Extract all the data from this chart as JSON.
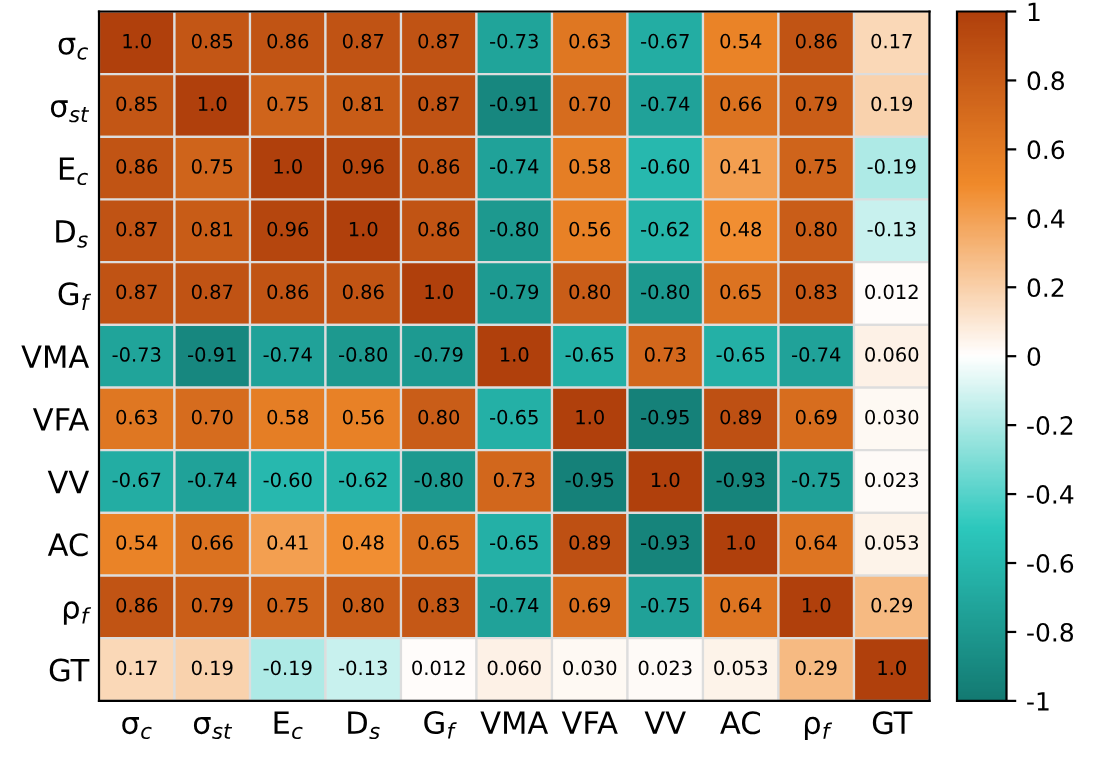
{
  "chart_data": {
    "type": "heatmap",
    "categories": [
      "σ$_{c}$",
      "σ$_{st}$",
      "E$_{c}$",
      "D$_{s}$",
      "G$_{f}$",
      "VMA",
      "VFA",
      "VV",
      "AC",
      "ρ$_{f}$",
      "GT"
    ],
    "y_categories": [
      "σ$_{c}$",
      "σ$_{st}$",
      "E$_{c}$",
      "D$_{s}$",
      "G$_{f}$",
      "VMA",
      "VFA",
      "VV",
      "AC",
      "ρ$_{f}$",
      "GT"
    ],
    "cells": [
      [
        1.0,
        0.85,
        0.86,
        0.87,
        0.87,
        -0.73,
        0.63,
        -0.67,
        0.54,
        0.86,
        0.17
      ],
      [
        0.85,
        1.0,
        0.75,
        0.81,
        0.87,
        -0.91,
        0.7,
        -0.74,
        0.66,
        0.79,
        0.19
      ],
      [
        0.86,
        0.75,
        1.0,
        0.96,
        0.86,
        -0.74,
        0.58,
        -0.6,
        0.41,
        0.75,
        -0.19
      ],
      [
        0.87,
        0.81,
        0.96,
        1.0,
        0.86,
        -0.8,
        0.56,
        -0.62,
        0.48,
        0.8,
        -0.13
      ],
      [
        0.87,
        0.87,
        0.86,
        0.86,
        1.0,
        -0.79,
        0.8,
        -0.8,
        0.65,
        0.83,
        0.012
      ],
      [
        -0.73,
        -0.91,
        -0.74,
        -0.8,
        -0.79,
        1.0,
        -0.65,
        0.73,
        -0.65,
        -0.74,
        0.06
      ],
      [
        0.63,
        0.7,
        0.58,
        0.56,
        0.8,
        -0.65,
        1.0,
        -0.95,
        0.89,
        0.69,
        0.03
      ],
      [
        -0.67,
        -0.74,
        -0.6,
        -0.62,
        -0.8,
        0.73,
        -0.95,
        1.0,
        -0.93,
        -0.75,
        0.023
      ],
      [
        0.54,
        0.66,
        0.41,
        0.48,
        0.65,
        -0.65,
        0.89,
        -0.93,
        1.0,
        0.64,
        0.053
      ],
      [
        0.86,
        0.79,
        0.75,
        0.8,
        0.83,
        -0.74,
        0.69,
        -0.75,
        0.64,
        1.0,
        0.29
      ],
      [
        0.17,
        0.19,
        -0.19,
        -0.13,
        0.012,
        0.06,
        0.03,
        0.023,
        0.053,
        0.29,
        1.0
      ]
    ],
    "cell_labels": [
      [
        "1.0",
        "0.85",
        "0.86",
        "0.87",
        "0.87",
        "-0.73",
        "0.63",
        "-0.67",
        "0.54",
        "0.86",
        "0.17"
      ],
      [
        "0.85",
        "1.0",
        "0.75",
        "0.81",
        "0.87",
        "-0.91",
        "0.70",
        "-0.74",
        "0.66",
        "0.79",
        "0.19"
      ],
      [
        "0.86",
        "0.75",
        "1.0",
        "0.96",
        "0.86",
        "-0.74",
        "0.58",
        "-0.60",
        "0.41",
        "0.75",
        "-0.19"
      ],
      [
        "0.87",
        "0.81",
        "0.96",
        "1.0",
        "0.86",
        "-0.80",
        "0.56",
        "-0.62",
        "0.48",
        "0.80",
        "-0.13"
      ],
      [
        "0.87",
        "0.87",
        "0.86",
        "0.86",
        "1.0",
        "-0.79",
        "0.80",
        "-0.80",
        "0.65",
        "0.83",
        "0.012"
      ],
      [
        "-0.73",
        "-0.91",
        "-0.74",
        "-0.80",
        "-0.79",
        "1.0",
        "-0.65",
        "0.73",
        "-0.65",
        "-0.74",
        "0.060"
      ],
      [
        "0.63",
        "0.70",
        "0.58",
        "0.56",
        "0.80",
        "-0.65",
        "1.0",
        "-0.95",
        "0.89",
        "0.69",
        "0.030"
      ],
      [
        "-0.67",
        "-0.74",
        "-0.60",
        "-0.62",
        "-0.80",
        "0.73",
        "-0.95",
        "1.0",
        "-0.93",
        "-0.75",
        "0.023"
      ],
      [
        "0.54",
        "0.66",
        "0.41",
        "0.48",
        "0.65",
        "-0.65",
        "0.89",
        "-0.93",
        "1.0",
        "0.64",
        "0.053"
      ],
      [
        "0.86",
        "0.79",
        "0.75",
        "0.80",
        "0.83",
        "-0.74",
        "0.69",
        "-0.75",
        "0.64",
        "1.0",
        "0.29"
      ],
      [
        "0.17",
        "0.19",
        "-0.19",
        "-0.13",
        "0.012",
        "0.060",
        "0.030",
        "0.023",
        "0.053",
        "0.29",
        "1.0"
      ]
    ],
    "clim": [
      -1,
      1
    ],
    "cticks": [
      -1,
      -0.8,
      -0.6,
      -0.4,
      -0.2,
      0,
      0.2,
      0.4,
      0.6,
      0.8,
      1
    ]
  }
}
